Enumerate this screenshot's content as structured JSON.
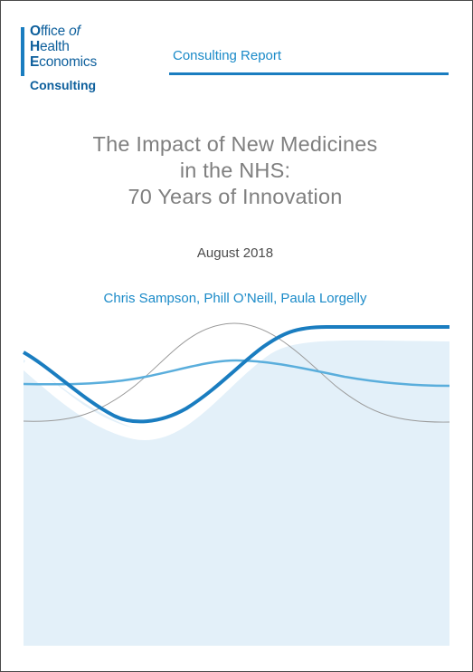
{
  "logo": {
    "line1_cap": "O",
    "line1_rest": "ffice ",
    "line1_ital": "of",
    "line2_cap": "H",
    "line2_rest": "ealth",
    "line3_cap": "E",
    "line3_rest": "conomics",
    "line4": "Consulting"
  },
  "header": {
    "report_type": "Consulting Report"
  },
  "title": {
    "line1": "The Impact of New Medicines",
    "line2": "in the NHS:",
    "line3": "70 Years of Innovation"
  },
  "date": "August 2018",
  "authors": "Chris Sampson, Phill O’Neill, Paula Lorgelly",
  "colors": {
    "brand_blue": "#1a7dc0",
    "dark_blue": "#0d5f9c",
    "mid_blue": "#5aaedc",
    "area_fill": "#e3f0f9",
    "title_grey": "#7f7f7f",
    "line_grey": "#9a9a9a"
  }
}
